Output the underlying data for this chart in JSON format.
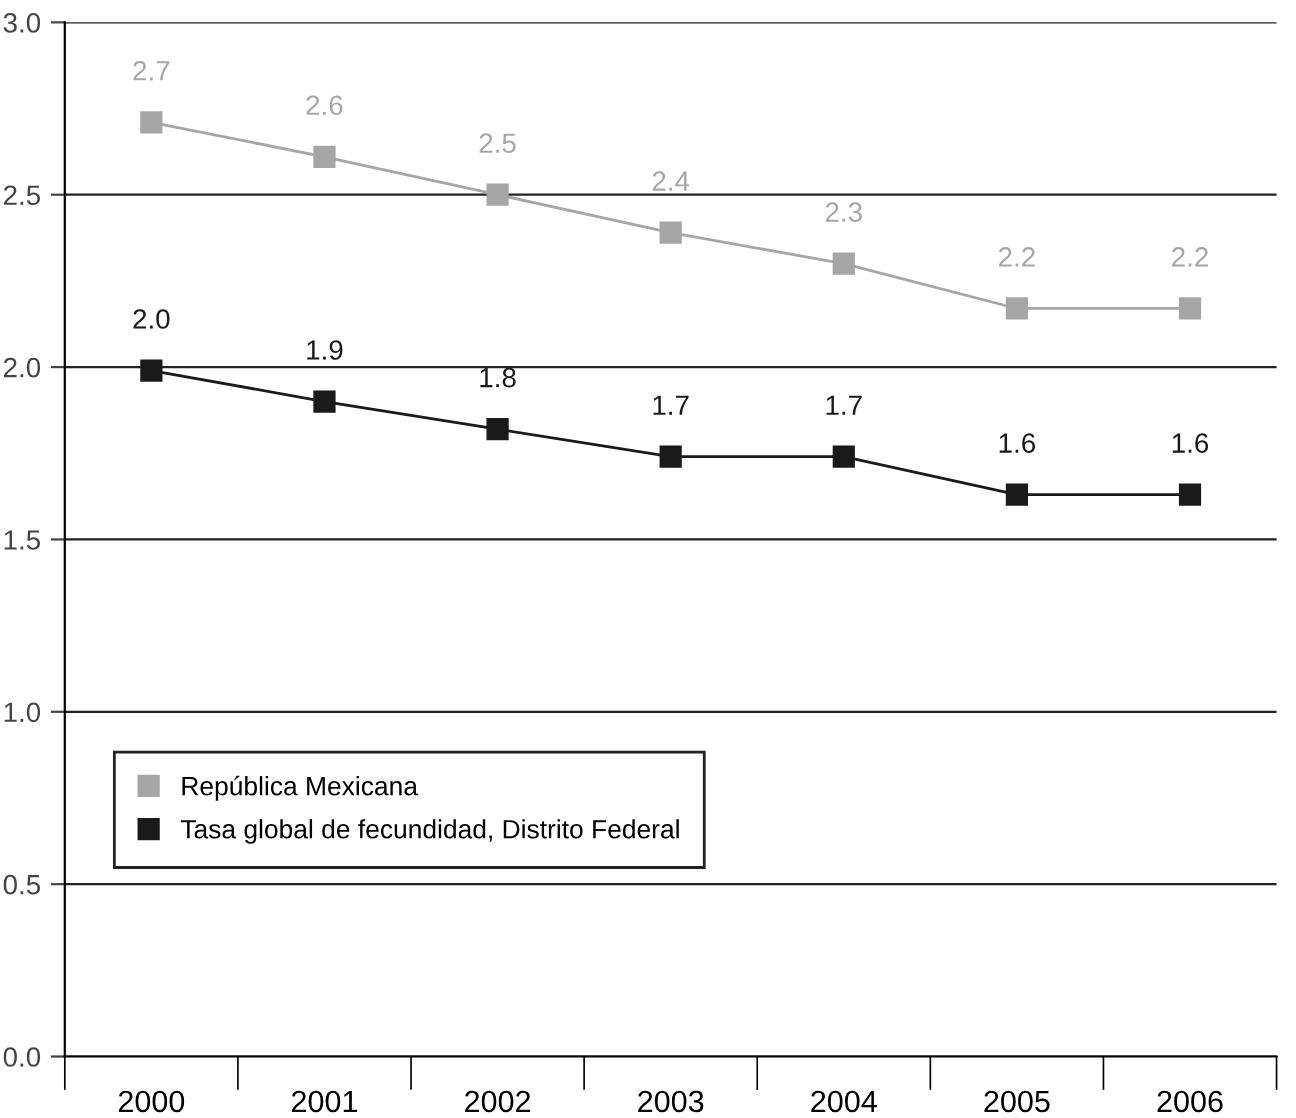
{
  "chart_data": {
    "type": "line",
    "categories": [
      "2000",
      "2001",
      "2002",
      "2003",
      "2004",
      "2005",
      "2006"
    ],
    "series": [
      {
        "name": "República Mexicana",
        "color": "#a6a6a6",
        "values": [
          2.71,
          2.61,
          2.5,
          2.39,
          2.3,
          2.17,
          2.17
        ],
        "value_labels": [
          "2.7",
          "2.6",
          "2.5",
          "2.4",
          "2.3",
          "2.2",
          "2.2"
        ]
      },
      {
        "name": "Tasa global de fecundidad, Distrito Federal",
        "color": "#1a1a1a",
        "values": [
          1.99,
          1.9,
          1.82,
          1.74,
          1.74,
          1.63,
          1.63
        ],
        "value_labels": [
          "2.0",
          "1.9",
          "1.8",
          "1.7",
          "1.7",
          "1.6",
          "1.6"
        ]
      }
    ],
    "ylim": [
      0,
      3
    ],
    "yticks": [
      {
        "value": 0,
        "label": "0.0"
      },
      {
        "value": 0.5,
        "label": "0.5"
      },
      {
        "value": 1,
        "label": "1.0"
      },
      {
        "value": 1.5,
        "label": "1.5"
      },
      {
        "value": 2,
        "label": "2.0"
      },
      {
        "value": 2.5,
        "label": "2.5"
      },
      {
        "value": 3,
        "label": "3.0"
      }
    ],
    "grid": "y",
    "legend": "bottom left",
    "marker": "square",
    "line_style": "solid"
  }
}
